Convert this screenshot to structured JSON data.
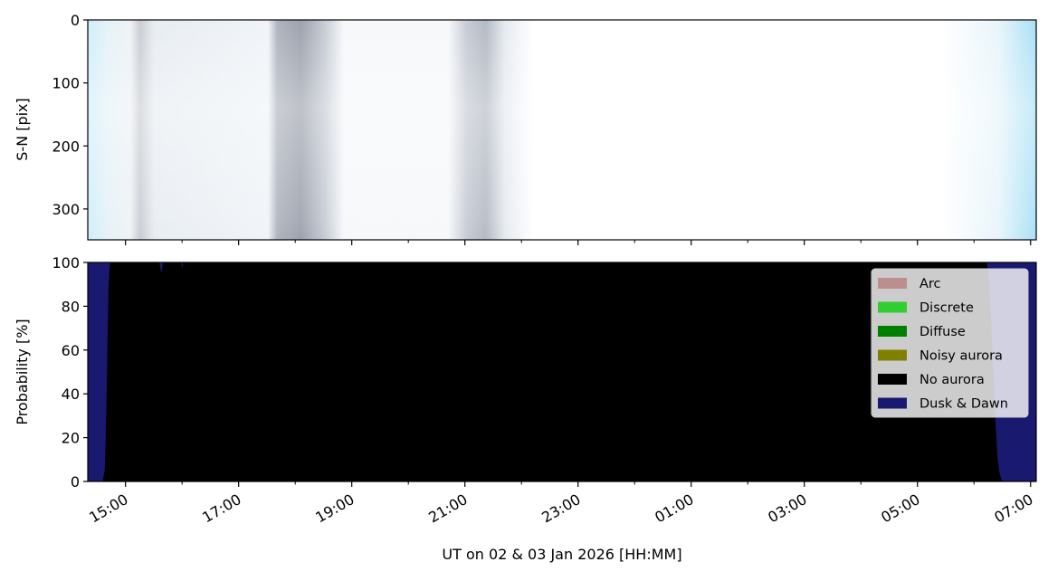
{
  "chart_data": [
    {
      "type": "heatmap",
      "ylabel": "S-N [pix]",
      "ylim": [
        349,
        0
      ],
      "yticks": [
        0,
        100,
        200,
        300
      ],
      "xlim": [
        "14:20",
        "07:06"
      ]
    },
    {
      "type": "area",
      "ylabel": "Probability [%]",
      "xlabel": "UT on 02 & 03 Jan 2026 [HH:MM]",
      "ylim": [
        0,
        100
      ],
      "yticks": [
        0,
        20,
        40,
        60,
        80,
        100
      ],
      "xlim": [
        "14:20",
        "07:06"
      ],
      "xticks": [
        "15:00",
        "17:00",
        "19:00",
        "21:00",
        "23:00",
        "01:00",
        "03:00",
        "05:00",
        "07:00"
      ],
      "legend_placement": "upper right",
      "legend": [
        {
          "name": "Arc",
          "color": "#bc8f8f"
        },
        {
          "name": "Discrete",
          "color": "#32cd32"
        },
        {
          "name": "Diffuse",
          "color": "#008000"
        },
        {
          "name": "Noisy aurora",
          "color": "#808000"
        },
        {
          "name": "No aurora",
          "color": "#000000"
        },
        {
          "name": "Dusk & Dawn",
          "color": "#191970"
        }
      ],
      "series": [
        {
          "name": "Dusk & Dawn",
          "color": "#191970",
          "x": [
            "14:20",
            "14:36",
            "14:37",
            "14:38",
            "14:39",
            "14:40",
            "14:41",
            "14:42",
            "14:43",
            "14:44",
            "15:36",
            "15:38",
            "15:40",
            "15:59",
            "16:00",
            "16:01",
            "06:13",
            "06:15",
            "06:17",
            "06:19",
            "06:21",
            "06:23",
            "06:25",
            "06:27",
            "06:29",
            "06:31",
            "07:06"
          ],
          "values": [
            100,
            100,
            97,
            95,
            80,
            60,
            35,
            12,
            3,
            0,
            0,
            5,
            0,
            0,
            3,
            0,
            0,
            3,
            15,
            35,
            55,
            75,
            90,
            96,
            99,
            100,
            100
          ]
        },
        {
          "name": "No aurora",
          "color": "#000000",
          "note_remainder": true
        }
      ]
    }
  ]
}
